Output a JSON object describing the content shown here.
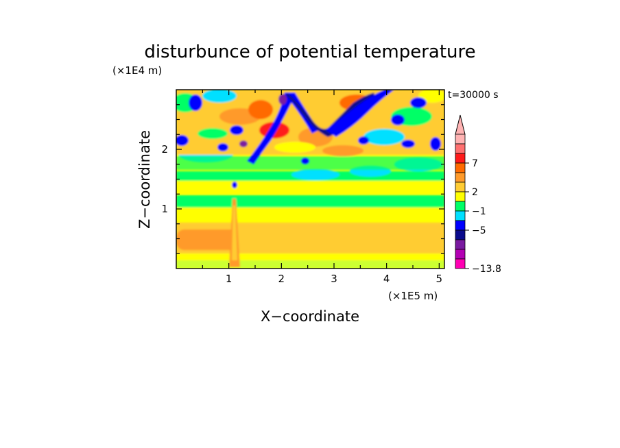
{
  "chart_data": {
    "type": "heatmap",
    "title": "disturbunce of potential temperature",
    "xlabel": "X−coordinate",
    "ylabel": "Z−coordinate",
    "x_unit": "(×1E5 m)",
    "y_unit": "(×1E4 m)",
    "time_label": "t=30000 s",
    "xlim": [
      0,
      5.1
    ],
    "ylim": [
      0,
      3.0
    ],
    "x_ticks": [
      "1",
      "2",
      "3",
      "4",
      "5"
    ],
    "y_ticks": [
      "1",
      "2"
    ],
    "colorbar": {
      "labels": [
        "7",
        "2",
        "−1",
        "−5",
        "−13.8"
      ],
      "colors": [
        "#ffb3b3",
        "#ff7070",
        "#ff1a1a",
        "#ff6a00",
        "#ff9a2a",
        "#ffcc33",
        "#ffff00",
        "#00ff66",
        "#00e0ff",
        "#0000ff",
        "#0a0a8c",
        "#7a1aa0",
        "#b300b3",
        "#ff00b3"
      ]
    },
    "field_description_levels": [
      {
        "z_range": [
          0,
          0.15
        ],
        "value": "yellow/green mix"
      },
      {
        "z_range": [
          0.15,
          1.0
        ],
        "value": "orange/yellow (2 to 4)"
      },
      {
        "z_range": [
          1.0,
          1.5
        ],
        "value": "green (0 to -1)"
      },
      {
        "z_range": [
          1.5,
          2.3
        ],
        "value": "mixed yellow/cyan/blue"
      },
      {
        "z_range": [
          2.3,
          3.0
        ],
        "value": "wave pattern red/blue"
      }
    ]
  }
}
